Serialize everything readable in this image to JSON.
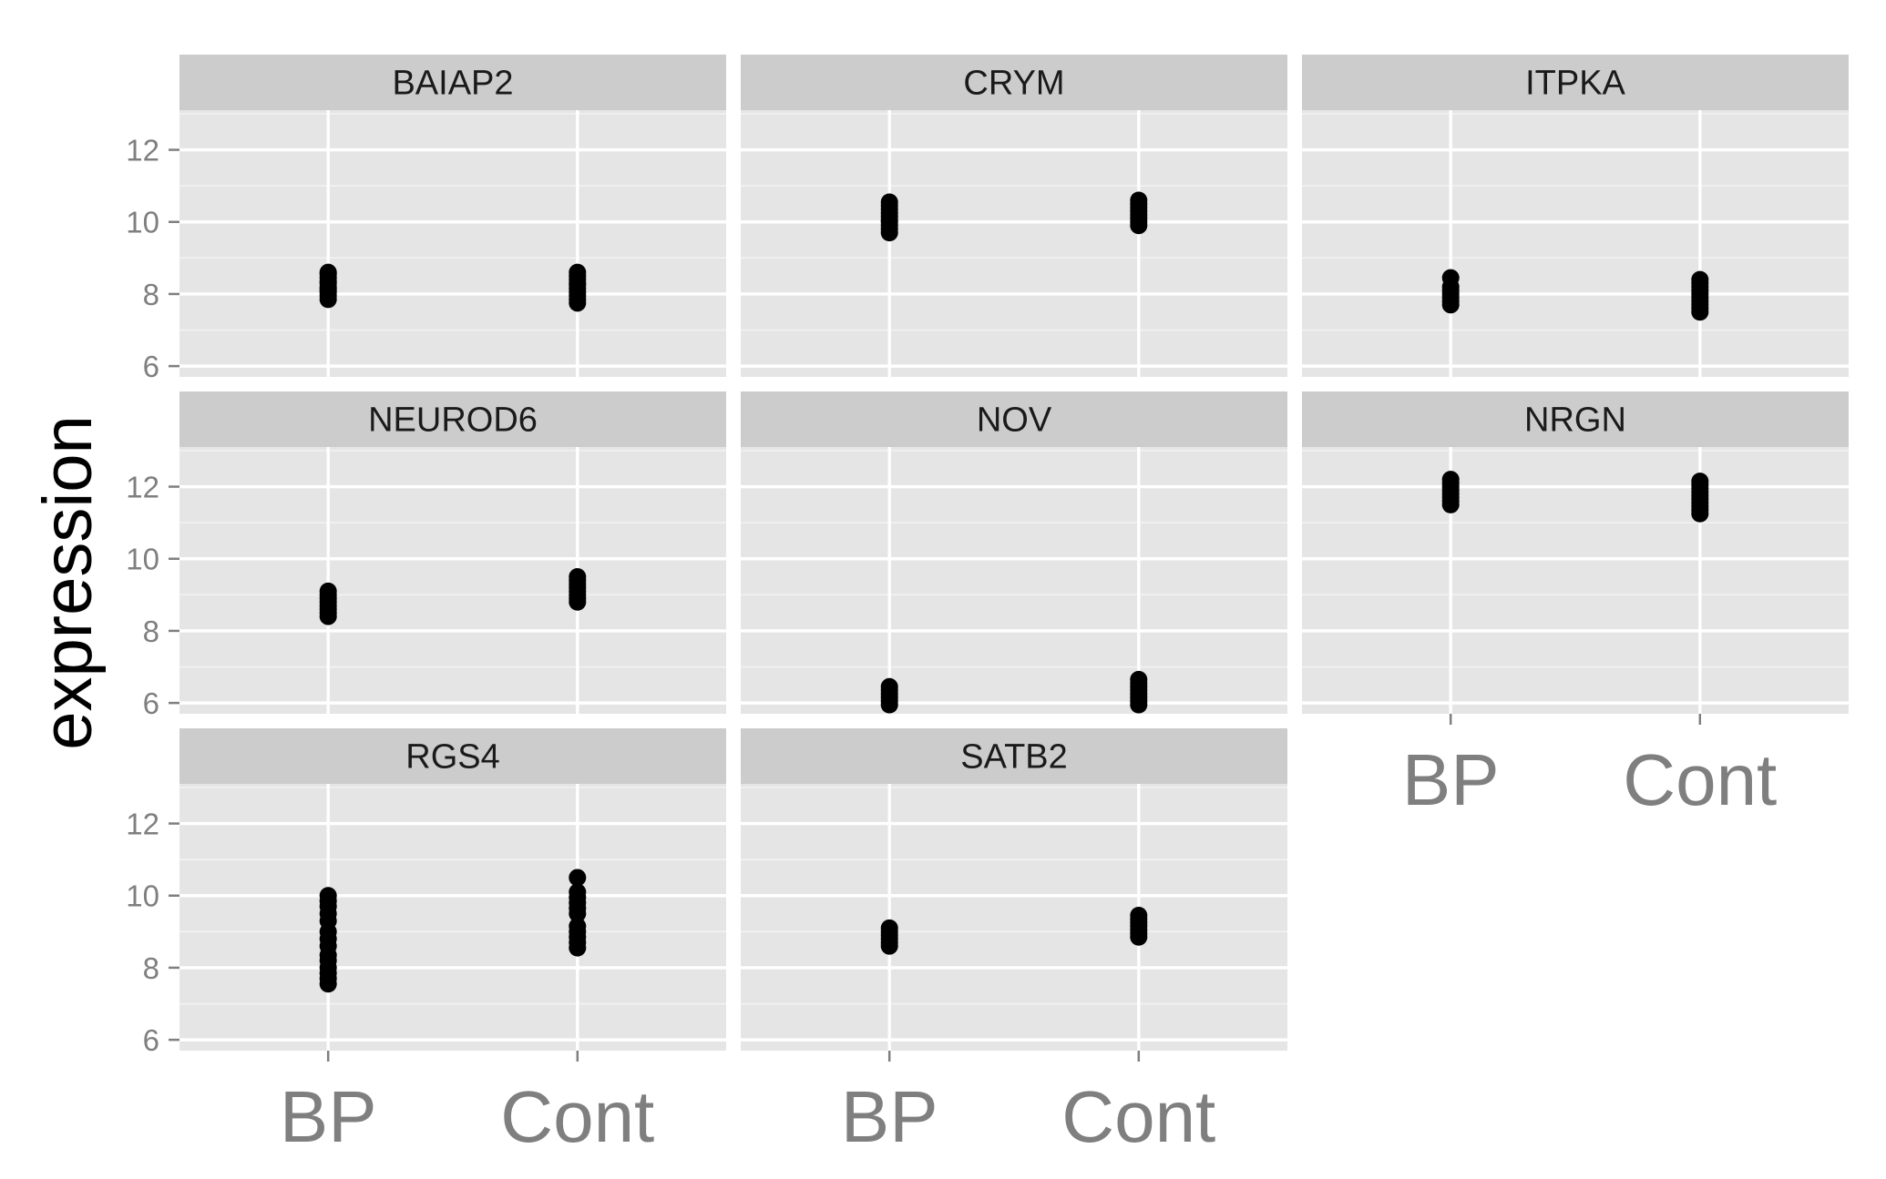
{
  "chart_data": {
    "type": "scatter",
    "facet_layout": {
      "columns": 3,
      "rows": 3
    },
    "ylabel": "expression",
    "xlabel": "",
    "categories": [
      "BP",
      "Cont"
    ],
    "ylim": [
      5.7,
      13.1
    ],
    "yticks": [
      6,
      8,
      10,
      12
    ],
    "grid": true,
    "panels": [
      {
        "title": "BAIAP2",
        "series": [
          {
            "category": "BP",
            "values": [
              7.85,
              7.95,
              8.05,
              8.1,
              8.15,
              8.2,
              8.3,
              8.35,
              8.45,
              8.55,
              8.6
            ]
          },
          {
            "category": "Cont",
            "values": [
              7.75,
              7.85,
              7.95,
              8.05,
              8.15,
              8.25,
              8.3,
              8.4,
              8.5,
              8.6
            ]
          }
        ]
      },
      {
        "title": "CRYM",
        "series": [
          {
            "category": "BP",
            "values": [
              9.7,
              9.8,
              9.9,
              10.0,
              10.05,
              10.15,
              10.25,
              10.35,
              10.45,
              10.55
            ]
          },
          {
            "category": "Cont",
            "values": [
              9.9,
              10.0,
              10.1,
              10.2,
              10.3,
              10.4,
              10.5,
              10.6
            ]
          }
        ]
      },
      {
        "title": "ITPKA",
        "series": [
          {
            "category": "BP",
            "values": [
              7.7,
              7.8,
              7.9,
              8.0,
              8.1,
              8.2,
              8.45
            ]
          },
          {
            "category": "Cont",
            "values": [
              7.5,
              7.6,
              7.7,
              7.8,
              7.9,
              8.0,
              8.1,
              8.2,
              8.3,
              8.4
            ]
          }
        ]
      },
      {
        "title": "NEUROD6",
        "series": [
          {
            "category": "BP",
            "values": [
              8.4,
              8.5,
              8.6,
              8.7,
              8.8,
              8.9,
              9.0,
              9.1
            ]
          },
          {
            "category": "Cont",
            "values": [
              8.8,
              8.9,
              9.0,
              9.1,
              9.2,
              9.3,
              9.4,
              9.5
            ]
          }
        ]
      },
      {
        "title": "NOV",
        "series": [
          {
            "category": "BP",
            "values": [
              5.95,
              6.05,
              6.15,
              6.25,
              6.35,
              6.45
            ]
          },
          {
            "category": "Cont",
            "values": [
              5.95,
              6.05,
              6.15,
              6.25,
              6.35,
              6.45,
              6.55,
              6.65
            ]
          }
        ]
      },
      {
        "title": "NRGN",
        "series": [
          {
            "category": "BP",
            "values": [
              11.5,
              11.6,
              11.7,
              11.8,
              11.9,
              12.0,
              12.1,
              12.2
            ]
          },
          {
            "category": "Cont",
            "values": [
              11.25,
              11.35,
              11.45,
              11.55,
              11.65,
              11.75,
              11.85,
              11.95,
              12.05,
              12.15
            ]
          }
        ]
      },
      {
        "title": "RGS4",
        "series": [
          {
            "category": "BP",
            "values": [
              7.55,
              7.7,
              7.85,
              8.0,
              8.2,
              8.35,
              8.6,
              8.8,
              9.0,
              9.3,
              9.5,
              9.7,
              9.85,
              10.0
            ]
          },
          {
            "category": "Cont",
            "values": [
              8.55,
              8.7,
              8.85,
              9.0,
              9.15,
              9.5,
              9.65,
              9.8,
              9.95,
              10.1,
              10.5
            ]
          }
        ]
      },
      {
        "title": "SATB2",
        "series": [
          {
            "category": "BP",
            "values": [
              8.6,
              8.7,
              8.8,
              8.9,
              9.0,
              9.1
            ]
          },
          {
            "category": "Cont",
            "values": [
              8.85,
              8.95,
              9.05,
              9.15,
              9.25,
              9.35,
              9.45
            ]
          }
        ]
      }
    ],
    "colors": {
      "panel_background": "#e5e5e5",
      "strip_background": "#cccccc",
      "grid_major": "#ffffff",
      "grid_minor": "#f2f2f2",
      "points": "#000000"
    }
  }
}
